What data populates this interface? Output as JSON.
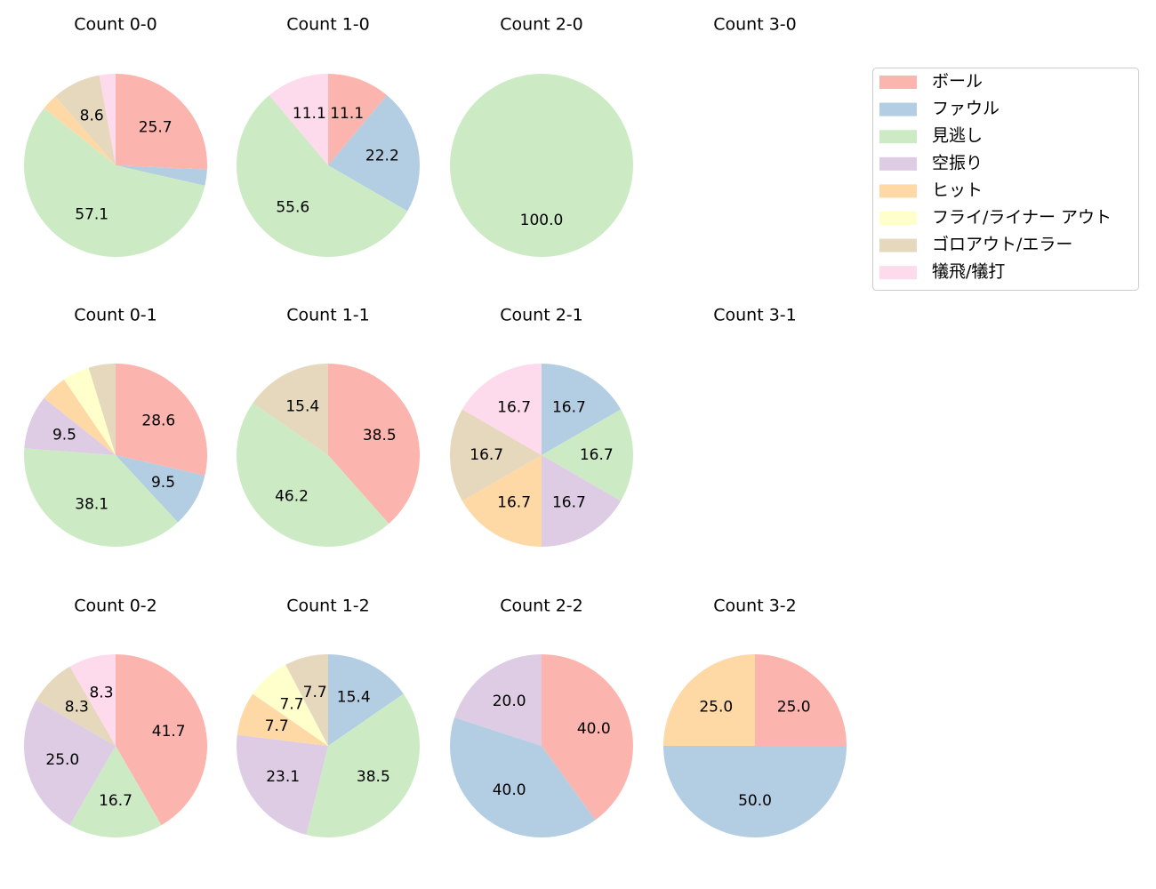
{
  "chart_data": {
    "type": "pie",
    "legend": {
      "placement": "top-right",
      "entries": [
        "ボール",
        "ファウル",
        "見逃し",
        "空振り",
        "ヒット",
        "フライ/ライナー アウト",
        "ゴロアウト/エラー",
        "犠飛/犠打"
      ]
    },
    "colors": [
      "#fbb4ae",
      "#b3cde3",
      "#ccebc5",
      "#decbe4",
      "#fed9a6",
      "#ffffcc",
      "#e5d8bd",
      "#fddaec"
    ],
    "charts": [
      {
        "title": "Count 0-0",
        "values": [
          9,
          1,
          20,
          0,
          1,
          0,
          3,
          1
        ]
      },
      {
        "title": "Count 1-0",
        "values": [
          1,
          2,
          5,
          0,
          0,
          0,
          0,
          1
        ]
      },
      {
        "title": "Count 2-0",
        "values": [
          0,
          0,
          1,
          0,
          0,
          0,
          0,
          0
        ]
      },
      {
        "title": "Count 3-0",
        "values": [
          0,
          0,
          0,
          0,
          0,
          0,
          0,
          0
        ]
      },
      {
        "title": "Count 0-1",
        "values": [
          6,
          2,
          8,
          2,
          1,
          1,
          1,
          0
        ]
      },
      {
        "title": "Count 1-1",
        "values": [
          5,
          0,
          6,
          0,
          0,
          0,
          2,
          0
        ]
      },
      {
        "title": "Count 2-1",
        "values": [
          0,
          1,
          1,
          1,
          1,
          0,
          1,
          1
        ]
      },
      {
        "title": "Count 3-1",
        "values": [
          0,
          0,
          0,
          0,
          0,
          0,
          0,
          0
        ]
      },
      {
        "title": "Count 0-2",
        "values": [
          5,
          0,
          2,
          3,
          0,
          0,
          1,
          1
        ]
      },
      {
        "title": "Count 1-2",
        "values": [
          0,
          2,
          5,
          3,
          1,
          1,
          1,
          0
        ]
      },
      {
        "title": "Count 2-2",
        "values": [
          2,
          2,
          0,
          1,
          0,
          0,
          0,
          0
        ]
      },
      {
        "title": "Count 3-2",
        "values": [
          1,
          2,
          0,
          0,
          1,
          0,
          0,
          0
        ]
      }
    ],
    "label_format": "percent, 1 decimal; labels hidden for small slices",
    "start": "top, clockwise"
  }
}
